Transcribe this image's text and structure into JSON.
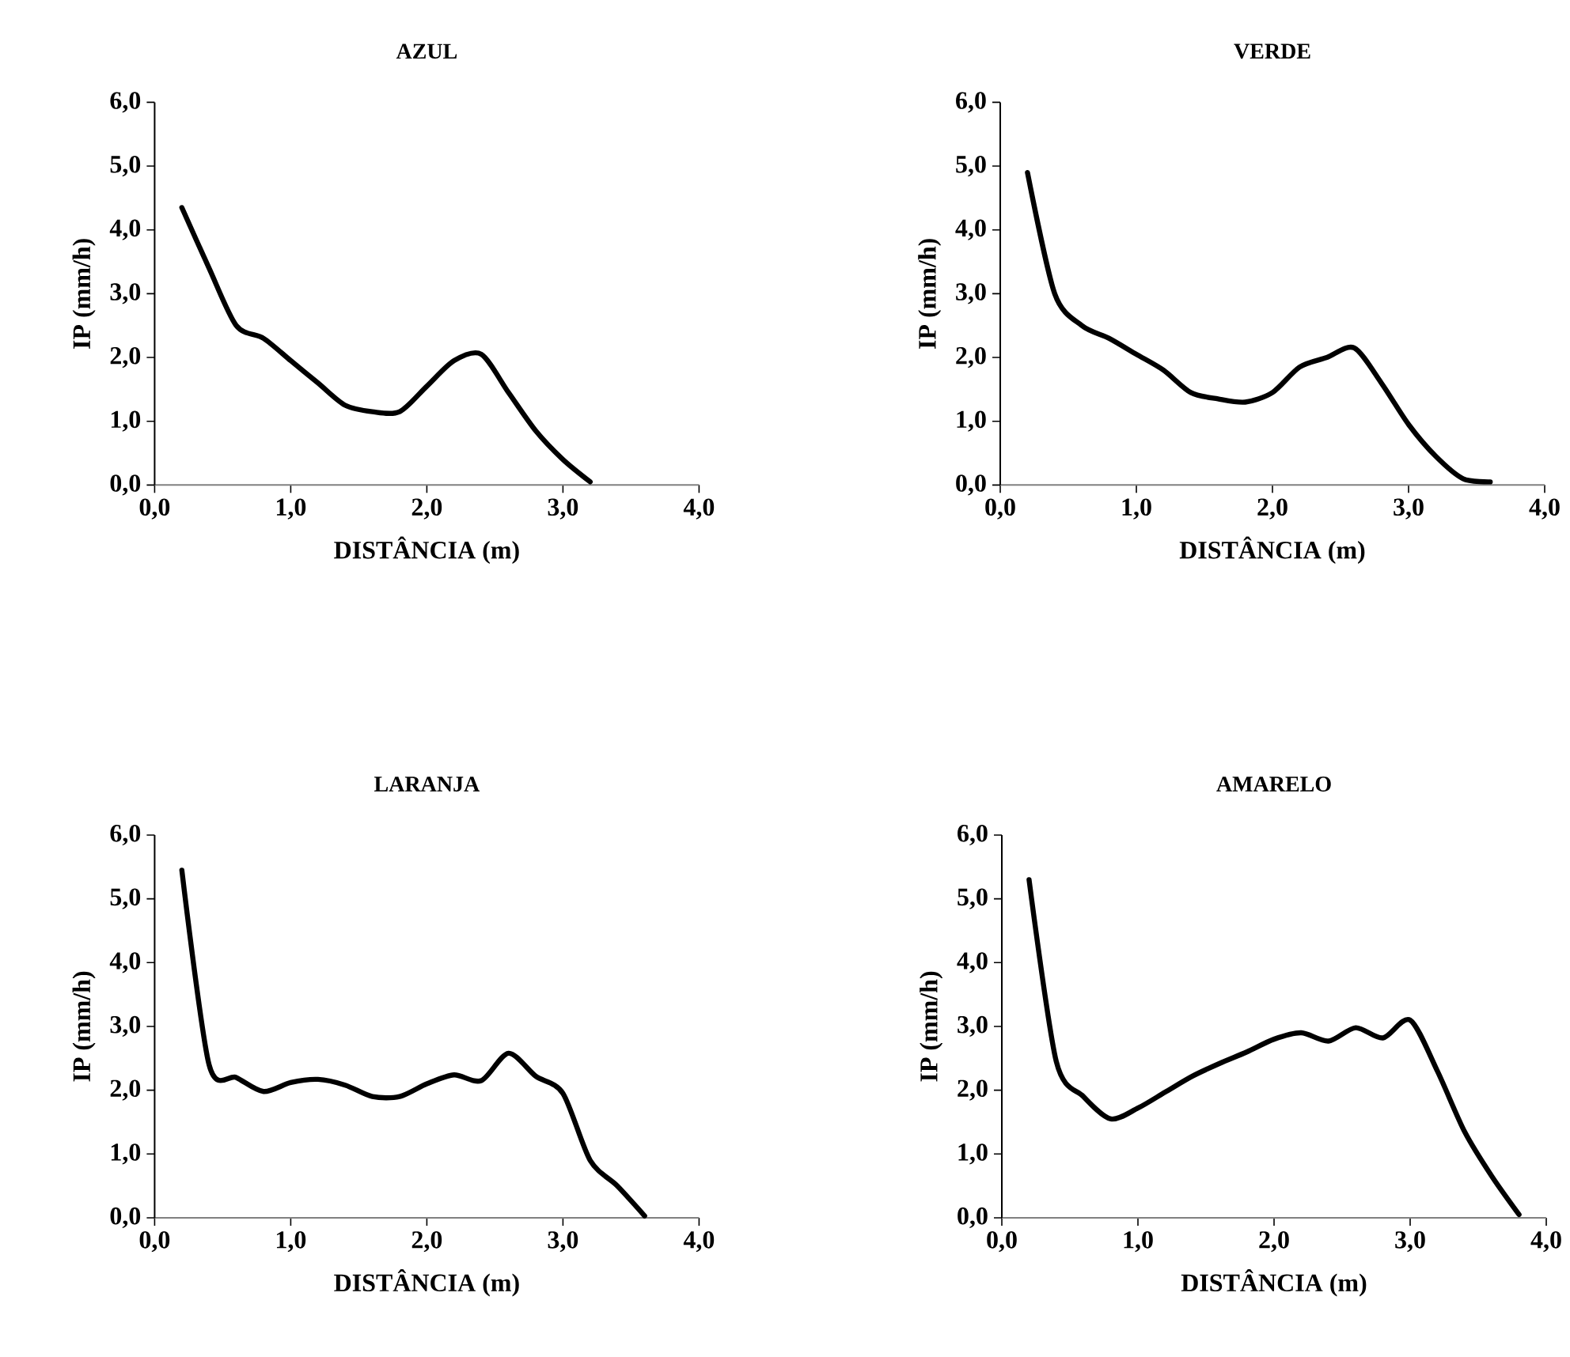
{
  "chart_data": [
    {
      "type": "line",
      "title": "AZUL",
      "xlabel": "DISTÂNCIA (m)",
      "ylabel": "IP (mm/h)",
      "color": "#000000",
      "x": [
        0.2,
        0.4,
        0.6,
        0.8,
        1.0,
        1.2,
        1.4,
        1.6,
        1.8,
        2.0,
        2.2,
        2.4,
        2.6,
        2.8,
        3.0,
        3.2
      ],
      "values": [
        4.35,
        3.4,
        2.5,
        2.3,
        1.95,
        1.6,
        1.25,
        1.15,
        1.15,
        1.55,
        1.95,
        2.05,
        1.45,
        0.85,
        0.4,
        0.05
      ],
      "xlim": [
        0,
        4
      ],
      "ylim": [
        0,
        6
      ],
      "xticks": [
        {
          "value": 0,
          "label": "0,0"
        },
        {
          "value": 1,
          "label": "1,0"
        },
        {
          "value": 2,
          "label": "2,0"
        },
        {
          "value": 3,
          "label": "3,0"
        },
        {
          "value": 4,
          "label": "4,0"
        }
      ],
      "yticks": [
        {
          "value": 0,
          "label": "0,0"
        },
        {
          "value": 1,
          "label": "1,0"
        },
        {
          "value": 2,
          "label": "2,0"
        },
        {
          "value": 3,
          "label": "3,0"
        },
        {
          "value": 4,
          "label": "4,0"
        },
        {
          "value": 5,
          "label": "5,0"
        },
        {
          "value": 6,
          "label": "6,0"
        }
      ]
    },
    {
      "type": "line",
      "title": "VERDE",
      "xlabel": "DISTÂNCIA (m)",
      "ylabel": "IP (mm/h)",
      "color": "#000000",
      "x": [
        0.2,
        0.4,
        0.6,
        0.8,
        1.0,
        1.2,
        1.4,
        1.6,
        1.8,
        2.0,
        2.2,
        2.4,
        2.6,
        2.8,
        3.0,
        3.2,
        3.4,
        3.6
      ],
      "values": [
        4.9,
        3.0,
        2.5,
        2.3,
        2.05,
        1.8,
        1.45,
        1.35,
        1.3,
        1.45,
        1.85,
        2.0,
        2.15,
        1.6,
        0.95,
        0.45,
        0.1,
        0.05
      ],
      "xlim": [
        0,
        4
      ],
      "ylim": [
        0,
        6
      ],
      "xticks": [
        {
          "value": 0,
          "label": "0,0"
        },
        {
          "value": 1,
          "label": "1,0"
        },
        {
          "value": 2,
          "label": "2,0"
        },
        {
          "value": 3,
          "label": "3,0"
        },
        {
          "value": 4,
          "label": "4,0"
        }
      ],
      "yticks": [
        {
          "value": 0,
          "label": "0,0"
        },
        {
          "value": 1,
          "label": "1,0"
        },
        {
          "value": 2,
          "label": "2,0"
        },
        {
          "value": 3,
          "label": "3,0"
        },
        {
          "value": 4,
          "label": "4,0"
        },
        {
          "value": 5,
          "label": "5,0"
        },
        {
          "value": 6,
          "label": "6,0"
        }
      ]
    },
    {
      "type": "line",
      "title": "LARANJA",
      "xlabel": "DISTÂNCIA (m)",
      "ylabel": "IP (mm/h)",
      "color": "#000000",
      "x": [
        0.2,
        0.4,
        0.6,
        0.8,
        1.0,
        1.2,
        1.4,
        1.6,
        1.8,
        2.0,
        2.2,
        2.4,
        2.6,
        2.8,
        3.0,
        3.2,
        3.4,
        3.6
      ],
      "values": [
        5.45,
        2.4,
        2.2,
        1.98,
        2.12,
        2.17,
        2.08,
        1.9,
        1.9,
        2.1,
        2.24,
        2.15,
        2.58,
        2.22,
        1.95,
        0.9,
        0.5,
        0.03
      ],
      "xlim": [
        0,
        4
      ],
      "ylim": [
        0,
        6
      ],
      "xticks": [
        {
          "value": 0,
          "label": "0,0"
        },
        {
          "value": 1,
          "label": "1,0"
        },
        {
          "value": 2,
          "label": "2,0"
        },
        {
          "value": 3,
          "label": "3,0"
        },
        {
          "value": 4,
          "label": "4,0"
        }
      ],
      "yticks": [
        {
          "value": 0,
          "label": "0,0"
        },
        {
          "value": 1,
          "label": "1,0"
        },
        {
          "value": 2,
          "label": "2,0"
        },
        {
          "value": 3,
          "label": "3,0"
        },
        {
          "value": 4,
          "label": "4,0"
        },
        {
          "value": 5,
          "label": "5,0"
        },
        {
          "value": 6,
          "label": "6,0"
        }
      ]
    },
    {
      "type": "line",
      "title": "AMARELO",
      "xlabel": "DISTÂNCIA (m)",
      "ylabel": "IP (mm/h)",
      "color": "#000000",
      "x": [
        0.2,
        0.4,
        0.6,
        0.8,
        1.0,
        1.2,
        1.4,
        1.6,
        1.8,
        2.0,
        2.2,
        2.4,
        2.6,
        2.8,
        3.0,
        3.2,
        3.4,
        3.6,
        3.8
      ],
      "values": [
        5.3,
        2.45,
        1.9,
        1.55,
        1.72,
        1.97,
        2.22,
        2.42,
        2.6,
        2.8,
        2.9,
        2.77,
        2.98,
        2.82,
        3.1,
        2.3,
        1.35,
        0.65,
        0.05
      ],
      "xlim": [
        0,
        4
      ],
      "ylim": [
        0,
        6
      ],
      "xticks": [
        {
          "value": 0,
          "label": "0,0"
        },
        {
          "value": 1,
          "label": "1,0"
        },
        {
          "value": 2,
          "label": "2,0"
        },
        {
          "value": 3,
          "label": "3,0"
        },
        {
          "value": 4,
          "label": "4,0"
        }
      ],
      "yticks": [
        {
          "value": 0,
          "label": "0,0"
        },
        {
          "value": 1,
          "label": "1,0"
        },
        {
          "value": 2,
          "label": "2,0"
        },
        {
          "value": 3,
          "label": "3,0"
        },
        {
          "value": 4,
          "label": "4,0"
        },
        {
          "value": 5,
          "label": "5,0"
        },
        {
          "value": 6,
          "label": "6,0"
        }
      ]
    }
  ]
}
